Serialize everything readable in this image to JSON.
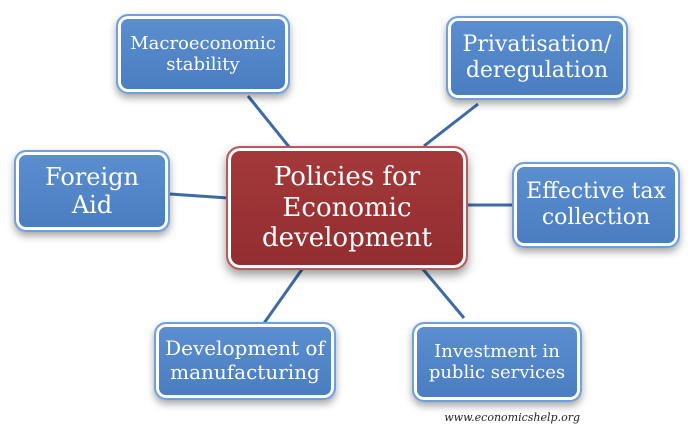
{
  "center": {
    "lines": [
      "Policies for",
      "Economic",
      "development"
    ],
    "color": "#9c3335"
  },
  "nodes": {
    "macro": {
      "lines": [
        "Macroeconomic",
        "stability"
      ]
    },
    "privatisation": {
      "lines": [
        "Privatisation/",
        "deregulation"
      ]
    },
    "foreign_aid": {
      "lines": [
        "Foreign",
        "Aid"
      ]
    },
    "tax": {
      "lines": [
        "Effective tax",
        "collection"
      ]
    },
    "manufacturing": {
      "lines": [
        "Development of",
        "manufacturing"
      ]
    },
    "public_services": {
      "lines": [
        "Investment in",
        "public services"
      ]
    }
  },
  "colors": {
    "node": "#4f82c4",
    "connector": "#3e6aa6"
  },
  "watermark": "www.economicshelp.org"
}
